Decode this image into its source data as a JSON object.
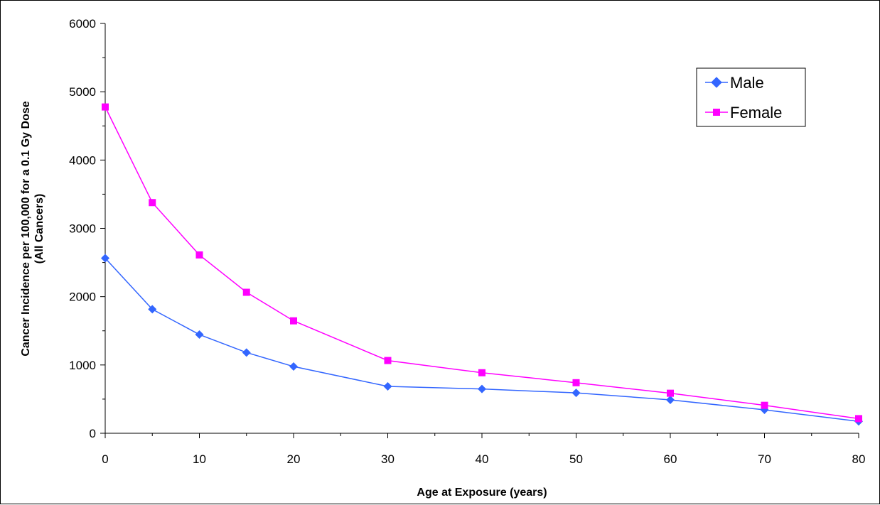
{
  "chart_data": {
    "type": "line",
    "title": "",
    "xlabel": "Age at Exposure (years)",
    "ylabel_line1": "Cancer Incidence per 100,000 for a 0.1 Gy Dose",
    "ylabel_line2": "(All Cancers)",
    "x": [
      0,
      5,
      10,
      15,
      20,
      30,
      40,
      50,
      60,
      70,
      80
    ],
    "x_tick_labels": [
      "0",
      "10",
      "20",
      "30",
      "40",
      "50",
      "60",
      "70",
      "80"
    ],
    "x_tick_values": [
      0,
      10,
      20,
      30,
      40,
      50,
      60,
      70,
      80
    ],
    "ylim": [
      0,
      6000
    ],
    "y_ticks": [
      0,
      1000,
      2000,
      3000,
      4000,
      5000,
      6000
    ],
    "y_tick_labels": [
      "0",
      "1000",
      "2000",
      "3000",
      "4000",
      "5000",
      "6000"
    ],
    "grid": false,
    "legend_position": "top-right",
    "series": [
      {
        "name": "Male",
        "color": "#3366ff",
        "marker": "diamond",
        "values": [
          2563,
          1816,
          1445,
          1182,
          977,
          686,
          648,
          591,
          489,
          343,
          174
        ]
      },
      {
        "name": "Female",
        "color": "#ff00ff",
        "marker": "square",
        "values": [
          4777,
          3377,
          2611,
          2064,
          1646,
          1065,
          886,
          740,
          586,
          409,
          214
        ]
      }
    ]
  }
}
